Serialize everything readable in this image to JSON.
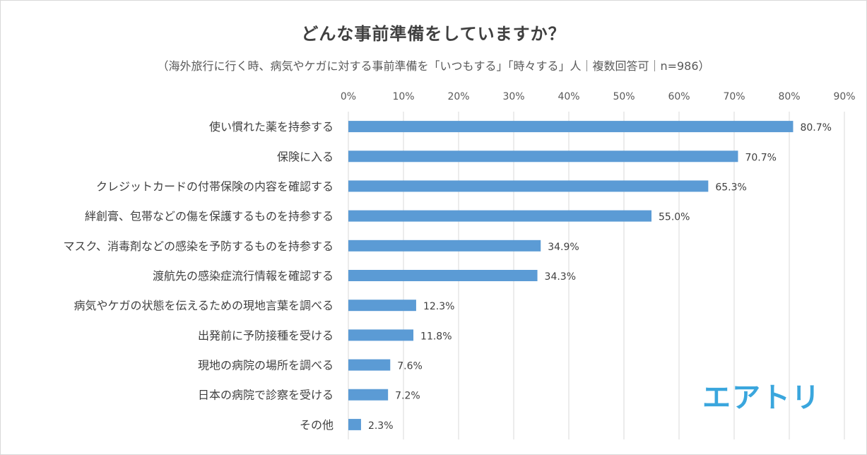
{
  "title": "どんな事前準備をしていますか？",
  "subtitle": "（海外旅行に行く時、病気やケガに対する事前準備を「いつもする」「時々する」人｜複数回答可｜n=986）",
  "logo_text": "エアトリ",
  "colors": {
    "bar": "#5b9bd5",
    "grid": "#d9d9d9",
    "logo": "#3aa6dd"
  },
  "chart_data": {
    "type": "bar",
    "orientation": "horizontal",
    "title": "どんな事前準備をしていますか？",
    "subtitle": "（海外旅行に行く時、病気やケガに対する事前準備を「いつもする」「時々する」人｜複数回答可｜n=986）",
    "xlim": [
      0,
      90
    ],
    "x_ticks": [
      "0%",
      "10%",
      "20%",
      "30%",
      "40%",
      "50%",
      "60%",
      "70%",
      "80%",
      "90%"
    ],
    "grid": true,
    "categories": [
      "使い慣れた薬を持参する",
      "保険に入る",
      "クレジットカードの付帯保険の内容を確認する",
      "絆創膏、包帯などの傷を保護するものを持参する",
      "マスク、消毒剤などの感染を予防するものを持参する",
      "渡航先の感染症流行情報を確認する",
      "病気やケガの状態を伝えるための現地言葉を調べる",
      "出発前に予防接種を受ける",
      "現地の病院の場所を調べる",
      "日本の病院で診察を受ける",
      "その他"
    ],
    "values": [
      80.7,
      70.7,
      65.3,
      55.0,
      34.9,
      34.3,
      12.3,
      11.8,
      7.6,
      7.2,
      2.3
    ],
    "value_labels": [
      "80.7%",
      "70.7%",
      "65.3%",
      "55.0%",
      "34.9%",
      "34.3%",
      "12.3%",
      "11.8%",
      "7.6%",
      "7.2%",
      "2.3%"
    ]
  }
}
